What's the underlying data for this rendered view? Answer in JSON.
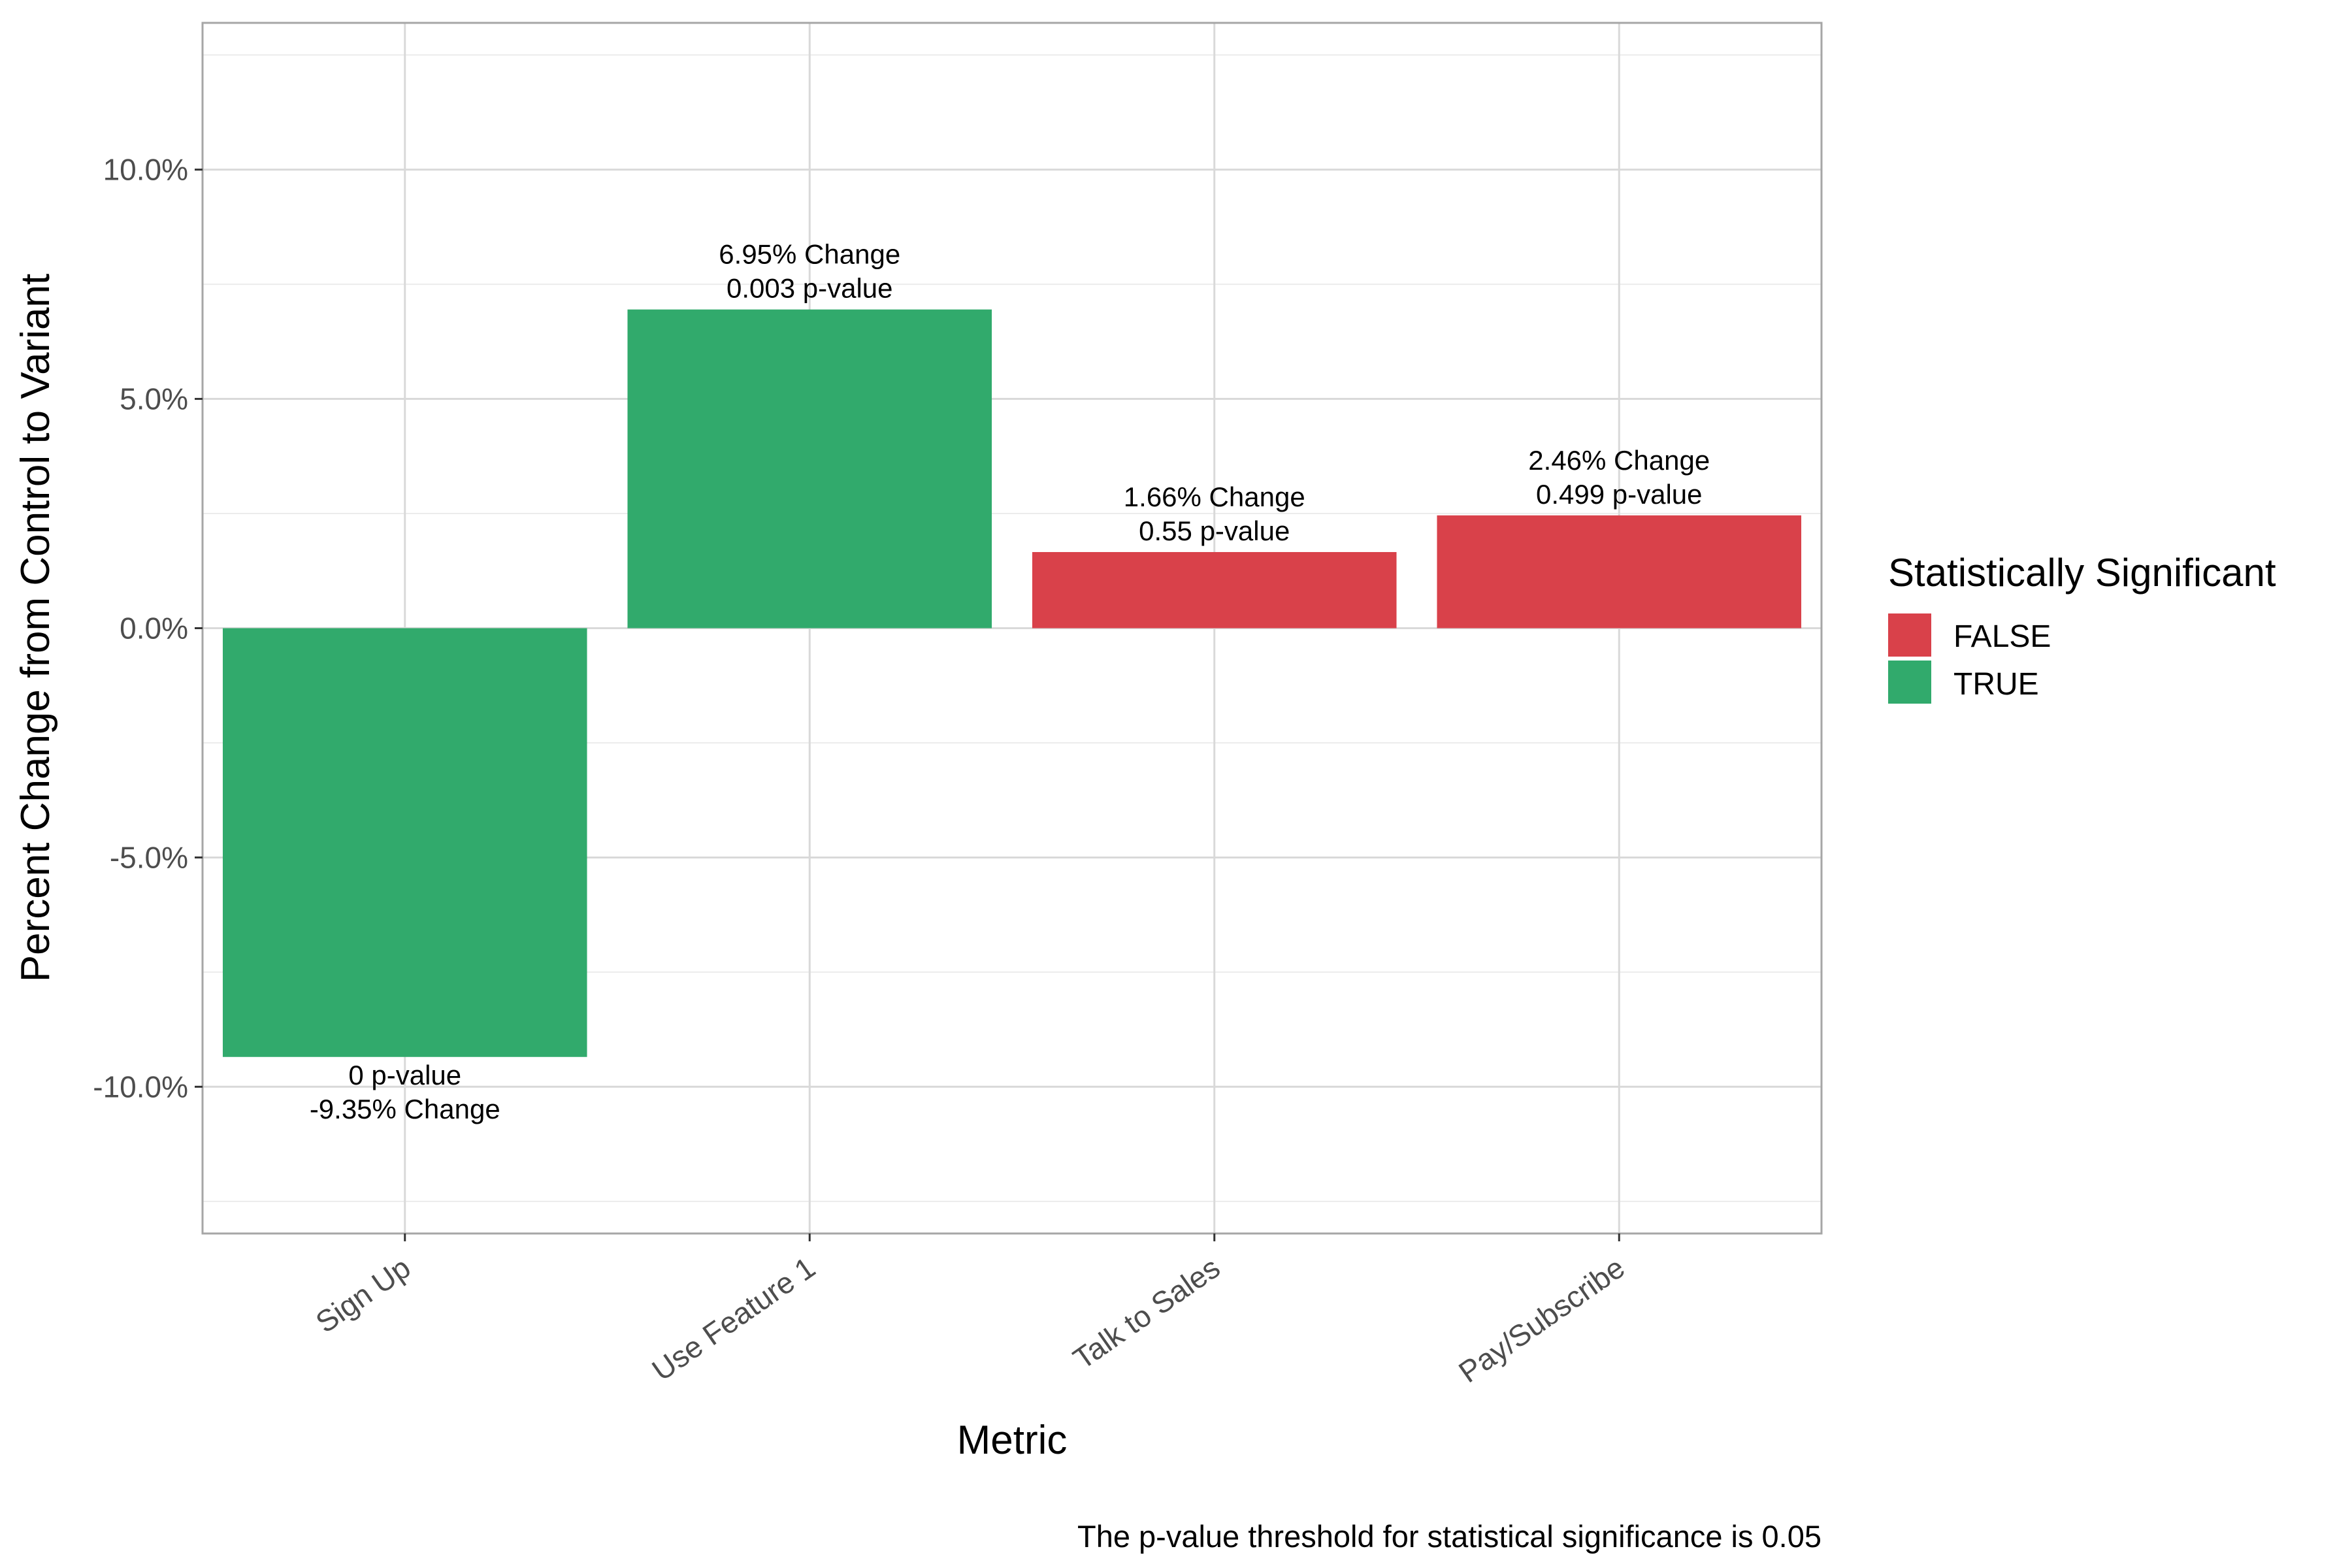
{
  "chart_data": {
    "type": "bar",
    "title": "",
    "xlabel": "Metric",
    "ylabel": "Percent Change from Control to Variant",
    "caption": "The p-value threshold for statistical significance is 0.05",
    "ylim": [
      -13.2,
      13.2
    ],
    "yticks": [
      -10,
      -5,
      0,
      5,
      10
    ],
    "ytick_labels": [
      "-10.0%",
      "-5.0%",
      "0.0%",
      "5.0%",
      "10.0%"
    ],
    "grid": true,
    "legend_position": "right",
    "categories": [
      "Sign Up",
      "Use Feature 1",
      "Talk to Sales",
      "Pay/Subscribe"
    ],
    "values": [
      -9.35,
      6.95,
      1.66,
      2.46
    ],
    "significant": [
      "TRUE",
      "TRUE",
      "FALSE",
      "FALSE"
    ],
    "p_values": [
      "0",
      "0.003",
      "0.55",
      "0.499"
    ],
    "labels": [
      [
        "0 p-value",
        "-9.35% Change"
      ],
      [
        "6.95% Change",
        "0.003 p-value"
      ],
      [
        "1.66% Change",
        "0.55 p-value"
      ],
      [
        "2.46% Change",
        "0.499 p-value"
      ]
    ],
    "legend": {
      "title": "Statistically Significant",
      "entries": [
        {
          "label": "FALSE",
          "color": "#d9414a"
        },
        {
          "label": "TRUE",
          "color": "#31aa6c"
        }
      ]
    }
  }
}
